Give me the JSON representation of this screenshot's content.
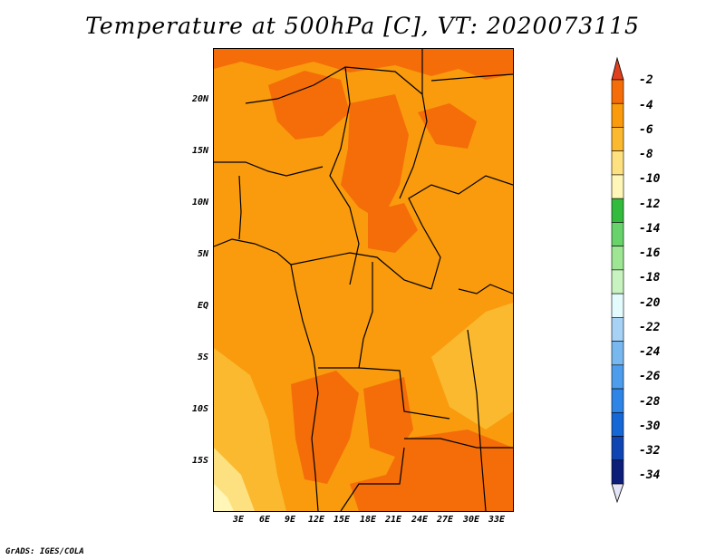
{
  "title": "Temperature at 500hPa [C], VT: 2020073115",
  "credit": "GrADS: IGES/COLA",
  "map": {
    "lat_labels": [
      "20N",
      "15N",
      "10N",
      "5N",
      "EQ",
      "5S",
      "10S",
      "15S"
    ],
    "lon_labels": [
      "3E",
      "6E",
      "9E",
      "12E",
      "15E",
      "18E",
      "21E",
      "24E",
      "27E",
      "30E",
      "33E"
    ]
  },
  "colorbar": {
    "labels": [
      "-2",
      "-4",
      "-6",
      "-8",
      "-10",
      "-12",
      "-14",
      "-16",
      "-18",
      "-20",
      "-22",
      "-24",
      "-26",
      "-28",
      "-30",
      "-32",
      "-34"
    ],
    "colors": [
      "#e0411c",
      "#f46d09",
      "#f99b0c",
      "#fbb92f",
      "#fde181",
      "#fff6b7",
      "#32bb3c",
      "#67d36a",
      "#9ee594",
      "#c8f2c0",
      "#e4fbfd",
      "#a7d2f6",
      "#78b8ef",
      "#4e9ded",
      "#2e85e6",
      "#1567d5",
      "#0f45b3",
      "#0d1e78",
      "#e4e4f7"
    ]
  }
}
